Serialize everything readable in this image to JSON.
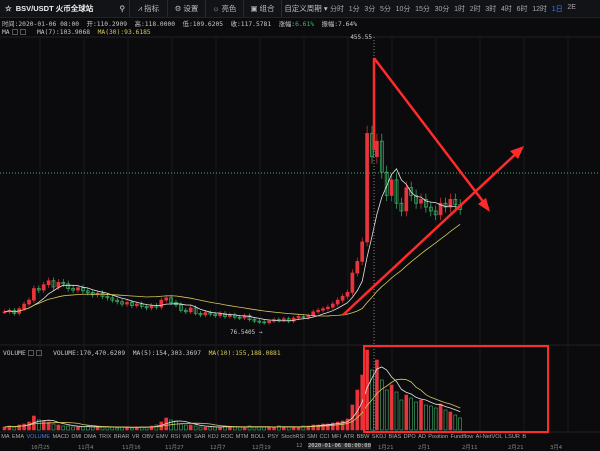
{
  "header": {
    "symbol": "BSV/USDT",
    "exchange": "火币全球站",
    "indicators": "指标",
    "settings": "设置",
    "theme": "亮色",
    "combo": "组合",
    "custom_period": "自定义周期 ▾",
    "intervals": [
      "分时",
      "1分",
      "3分",
      "5分",
      "10分",
      "15分",
      "30分",
      "1时",
      "2时",
      "3时",
      "4时",
      "6时",
      "12时",
      "1日",
      "2E"
    ],
    "active_interval": "1日"
  },
  "ohlc": {
    "time": "时间:2020-01-06 08:00",
    "open": "开:110.2909",
    "high": "高:118.0000",
    "low": "低:109.6205",
    "close": "收:117.5781",
    "change_label": "涨幅:",
    "change": "6.61%",
    "amplitude": "振幅:7.64%"
  },
  "ma": {
    "label": "MA",
    "ma7": "MA(7):103.9068",
    "ma30": "MA(30):93.6185"
  },
  "volume": {
    "label": "VOLUME",
    "value": "VOLUME:170,470.6209",
    "ma5": "MA(5):154,303.3697",
    "ma10": "MA(10):155,188.0881"
  },
  "price_marks": {
    "high": "455.55",
    "low": "76.5405"
  },
  "indicator_tabs": [
    "MA",
    "EMA",
    "VOLUME",
    "MACD",
    "DMI",
    "DMA",
    "TRIX",
    "BRAR",
    "VR",
    "OBV",
    "EMV",
    "RSI",
    "WR",
    "SAR",
    "KDJ",
    "ROC",
    "MTM",
    "BOLL",
    "PSY",
    "StochRSI",
    "SMI",
    "CCI",
    "MFI",
    "ATR",
    "BBW",
    "SKDJ",
    "BIAS",
    "DPO",
    "AD",
    "Position",
    "Fundflow",
    "AI-NetVOL",
    "LSUR",
    "B"
  ],
  "active_tab": "VOLUME",
  "dates": [
    "10月25",
    "11月4",
    "11月16",
    "11月27",
    "12月7",
    "12月19",
    "12",
    "2020-01-06 08:00:00",
    "1月21",
    "2月1",
    "2月11",
    "2月21",
    "3月4"
  ],
  "colors": {
    "up": "#e8343b",
    "down": "#3db56c",
    "ma7": "#e6e6e6",
    "ma30": "#d6c85a",
    "annotation": "#ff2a2a",
    "accent": "#3d7ff5"
  },
  "candles": [
    100,
    102,
    98,
    104,
    110,
    115,
    130,
    128,
    135,
    140,
    132,
    138,
    136,
    130,
    128,
    131,
    127,
    125,
    122,
    124,
    120,
    118,
    115,
    113,
    110,
    112,
    108,
    110,
    107,
    105,
    108,
    106,
    115,
    118,
    112,
    109,
    102,
    100,
    105,
    98,
    96,
    99,
    97,
    95,
    98,
    94,
    96,
    93,
    92,
    95,
    90,
    88,
    87,
    86,
    88,
    90,
    89,
    91,
    88,
    92,
    94,
    93,
    95,
    100,
    102,
    104,
    106,
    110,
    115,
    120,
    125,
    150,
    165,
    190,
    330,
    300,
    320,
    280,
    250,
    270,
    240,
    230,
    260,
    250,
    240,
    245,
    235,
    230,
    225,
    240,
    235,
    245,
    238,
    232
  ],
  "volumes": [
    3,
    4,
    3,
    5,
    6,
    8,
    14,
    10,
    9,
    8,
    6,
    5,
    4,
    4,
    3,
    3,
    3,
    4,
    3,
    3,
    3,
    3,
    3,
    2,
    3,
    3,
    2,
    3,
    3,
    3,
    4,
    5,
    8,
    12,
    10,
    9,
    6,
    5,
    5,
    4,
    3,
    3,
    3,
    3,
    3,
    4,
    3,
    3,
    3,
    3,
    4,
    3,
    3,
    3,
    3,
    3,
    4,
    3,
    3,
    3,
    3,
    4,
    4,
    5,
    5,
    6,
    6,
    7,
    8,
    9,
    11,
    25,
    40,
    55,
    80,
    60,
    70,
    50,
    40,
    45,
    38,
    30,
    35,
    32,
    28,
    30,
    25,
    24,
    22,
    26,
    20,
    18,
    15,
    12
  ]
}
